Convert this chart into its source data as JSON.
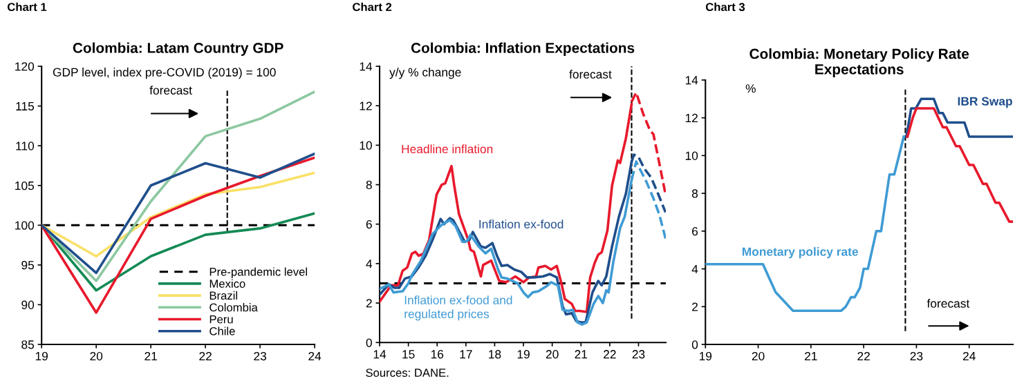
{
  "chart_data": [
    {
      "type": "line",
      "title": "Colombia: Latam Country GDP",
      "ylabel": "GDP level, index pre-COVID (2019) = 100",
      "annotations": [
        "Chart 1",
        "forecast"
      ],
      "x": [
        19,
        20,
        21,
        22,
        23,
        24
      ],
      "xlim": [
        19,
        24
      ],
      "xticks": [
        19,
        20,
        21,
        22,
        23,
        24
      ],
      "ylim": [
        85,
        120
      ],
      "yticks": [
        85,
        90,
        95,
        100,
        105,
        110,
        115,
        120
      ],
      "legend": "bottom right",
      "ref_lines": [
        {
          "axis": "y",
          "value": 100,
          "label": "Pre-pandemic level",
          "color": "#000000",
          "line_style": "dashed"
        },
        {
          "axis": "x",
          "value": 22.4,
          "color": "#000000",
          "line_style": "dashed"
        }
      ],
      "series": [
        {
          "name": "Mexico",
          "color": "#138a55",
          "values": [
            100,
            91.8,
            96.1,
            98.8,
            99.6,
            101.5
          ]
        },
        {
          "name": "Brazil",
          "color": "#f9e068",
          "values": [
            100,
            96.1,
            101.0,
            103.9,
            104.8,
            106.6
          ]
        },
        {
          "name": "Colombia",
          "color": "#8cc8a0",
          "values": [
            100,
            93.0,
            103.0,
            111.2,
            113.4,
            116.8
          ]
        },
        {
          "name": "Peru",
          "color": "#e8192c",
          "values": [
            100,
            89.0,
            100.8,
            103.7,
            106.2,
            108.5
          ]
        },
        {
          "name": "Chile",
          "color": "#1f4e8c",
          "values": [
            100,
            94.0,
            105.0,
            107.8,
            106.0,
            109.0
          ]
        }
      ]
    },
    {
      "type": "line",
      "title": "Colombia: Inflation Expectations",
      "ylabel": "y/y % change",
      "annotations": [
        "Chart 2",
        "forecast",
        "Sources: DANE."
      ],
      "xlim": [
        14,
        23.95
      ],
      "xticks": [
        14,
        15,
        16,
        17,
        18,
        19,
        20,
        21,
        22,
        23
      ],
      "ylim": [
        0,
        14
      ],
      "yticks": [
        0,
        2,
        4,
        6,
        8,
        10,
        12,
        14
      ],
      "ref_lines": [
        {
          "axis": "y",
          "value": 3,
          "color": "#000000",
          "line_style": "dashed"
        },
        {
          "axis": "x",
          "value": 22.76,
          "color": "#000000",
          "line_style": "dashed"
        }
      ],
      "series": [
        {
          "name": "Headline inflation",
          "color": "#e8192c",
          "line_style": "solid",
          "x": [
            14.0,
            14.4,
            14.64,
            14.8,
            14.96,
            15.12,
            15.24,
            15.36,
            15.52,
            15.72,
            15.84,
            15.98,
            16.16,
            16.28,
            16.5,
            16.6,
            16.76,
            16.96,
            17.08,
            17.16,
            17.28,
            17.52,
            17.6,
            17.88,
            18.16,
            18.4,
            18.72,
            19.0,
            19.2,
            19.44,
            19.52,
            19.76,
            19.96,
            20.16,
            20.32,
            20.44,
            20.68,
            20.8,
            20.96,
            21.2,
            21.32,
            21.48,
            21.6,
            21.72,
            21.92,
            22.08,
            22.28,
            22.36,
            22.56,
            22.76
          ],
          "values": [
            2.07,
            2.9,
            2.9,
            3.64,
            3.8,
            4.5,
            4.6,
            4.4,
            4.5,
            5.2,
            6.25,
            7.5,
            8.0,
            8.07,
            8.94,
            7.9,
            6.5,
            5.7,
            5.2,
            4.7,
            4.6,
            3.35,
            3.93,
            4.15,
            3.12,
            3.06,
            3.35,
            3.06,
            3.3,
            3.35,
            3.8,
            3.88,
            3.7,
            3.88,
            3.0,
            2.2,
            1.96,
            1.6,
            1.6,
            1.55,
            3.3,
            4.05,
            4.45,
            4.57,
            5.68,
            7.95,
            9.23,
            9.1,
            10.34,
            12.08
          ]
        },
        {
          "color": "#e8192c",
          "line_style": "dashed",
          "x": [
            22.76,
            22.92,
            23.16,
            23.4,
            23.52,
            23.68,
            23.94
          ],
          "values": [
            12.2,
            12.67,
            11.6,
            10.75,
            10.55,
            9.4,
            7.5
          ]
        },
        {
          "name": "Inflation ex-food",
          "color": "#1f4e8c",
          "line_style": "solid",
          "x": [
            14.0,
            14.32,
            14.52,
            14.68,
            14.88,
            15.12,
            15.36,
            15.6,
            15.84,
            16.12,
            16.24,
            16.44,
            16.56,
            16.96,
            17.12,
            17.24,
            17.52,
            17.68,
            17.92,
            18.08,
            18.24,
            18.44,
            18.68,
            18.92,
            19.12,
            19.36,
            19.68,
            19.92,
            20.16,
            20.36,
            20.48,
            20.68,
            20.84,
            21.0,
            21.16,
            21.4,
            21.6,
            21.72,
            21.88,
            22.08,
            22.32,
            22.56,
            22.76
          ],
          "values": [
            2.42,
            2.95,
            2.77,
            2.77,
            3.24,
            3.35,
            3.82,
            4.4,
            5.2,
            6.26,
            6.0,
            6.3,
            6.2,
            5.1,
            5.2,
            5.6,
            4.87,
            4.8,
            5.04,
            4.4,
            3.88,
            3.93,
            3.7,
            3.58,
            3.3,
            3.3,
            3.35,
            3.47,
            3.3,
            1.85,
            1.43,
            1.49,
            1.08,
            1.02,
            1.02,
            2.54,
            3.12,
            2.9,
            3.35,
            4.87,
            6.38,
            7.54,
            9.17
          ]
        },
        {
          "color": "#1f4e8c",
          "line_style": "dashed",
          "x": [
            22.76,
            22.84,
            23.0,
            23.2,
            23.44,
            23.68,
            23.94
          ],
          "values": [
            9.17,
            9.52,
            9.4,
            8.82,
            8.36,
            7.54,
            6.6
          ]
        },
        {
          "name": "Inflation ex-food and\nregulated prices",
          "color": "#3f9bd4",
          "line_style": "solid",
          "x": [
            14.0,
            14.32,
            14.48,
            14.8,
            15.0,
            15.12,
            15.44,
            15.84,
            16.16,
            16.44,
            16.64,
            16.88,
            17.04,
            17.16,
            17.44,
            17.68,
            17.88,
            18.12,
            18.24,
            18.44,
            18.8,
            19.0,
            19.16,
            19.32,
            19.52,
            19.84,
            19.96,
            20.2,
            20.36,
            20.56,
            20.72,
            20.88,
            21.04,
            21.2,
            21.44,
            21.6,
            21.76,
            21.88,
            21.96,
            22.12,
            22.36,
            22.52,
            22.76
          ],
          "values": [
            2.71,
            2.95,
            2.54,
            2.6,
            3.0,
            3.41,
            4.16,
            5.5,
            5.97,
            6.2,
            5.9,
            5.1,
            5.14,
            5.45,
            4.87,
            4.52,
            4.75,
            3.7,
            3.3,
            3.24,
            3.0,
            2.54,
            2.3,
            2.54,
            2.6,
            2.89,
            3.06,
            2.89,
            1.66,
            1.6,
            1.66,
            1.02,
            0.91,
            1.02,
            1.96,
            2.36,
            2.0,
            2.65,
            2.54,
            4.05,
            5.8,
            6.38,
            8.24
          ]
        },
        {
          "color": "#3f9bd4",
          "line_style": "dashed",
          "x": [
            22.76,
            22.92,
            23.08,
            23.28,
            23.52,
            23.72,
            23.94
          ],
          "values": [
            8.24,
            9.17,
            8.7,
            8.13,
            7.3,
            6.5,
            5.27
          ]
        }
      ]
    },
    {
      "type": "line",
      "title": "Colombia: Monetary Policy Rate\nExpectations",
      "ylabel": "%",
      "annotations": [
        "Chart 3",
        "forecast"
      ],
      "xlim": [
        19,
        24.83
      ],
      "xticks": [
        19,
        20,
        21,
        22,
        23,
        24
      ],
      "ylim": [
        0,
        14
      ],
      "yticks": [
        0,
        2,
        4,
        6,
        8,
        10,
        12,
        14
      ],
      "ref_lines": [
        {
          "axis": "x",
          "value": 22.79,
          "color": "#000000",
          "line_style": "dashed"
        }
      ],
      "series": [
        {
          "name": "Monetary policy rate",
          "color": "#3f9bd4",
          "x": [
            19.0,
            20.09,
            20.33,
            20.66,
            21.57,
            21.66,
            21.76,
            21.83,
            21.93,
            22.0,
            22.08,
            22.24,
            22.33,
            22.49,
            22.58,
            22.76
          ],
          "values": [
            4.25,
            4.25,
            2.77,
            1.78,
            1.78,
            2.0,
            2.5,
            2.5,
            3.0,
            4.0,
            4.0,
            6.0,
            6.0,
            9.0,
            9.0,
            11.0
          ]
        },
        {
          "name": "IBR Swap",
          "color": "#1f4e8c",
          "x": [
            22.81,
            22.9,
            22.99,
            23.09,
            23.33,
            23.43,
            23.5,
            23.59,
            23.91,
            24.0,
            24.83
          ],
          "values": [
            11.0,
            12.5,
            12.5,
            13.0,
            13.0,
            12.25,
            12.25,
            11.75,
            11.75,
            11.0,
            11.0
          ]
        },
        {
          "color": "#e8192c",
          "x": [
            22.83,
            22.93,
            23.0,
            23.33,
            23.5,
            23.57,
            23.75,
            23.82,
            24.0,
            24.08,
            24.26,
            24.33,
            24.5,
            24.57,
            24.76,
            24.83
          ],
          "values": [
            11.0,
            12.0,
            12.5,
            12.5,
            11.5,
            11.5,
            10.5,
            10.5,
            9.5,
            9.5,
            8.5,
            8.5,
            7.5,
            7.5,
            6.5,
            6.5
          ]
        }
      ]
    }
  ]
}
